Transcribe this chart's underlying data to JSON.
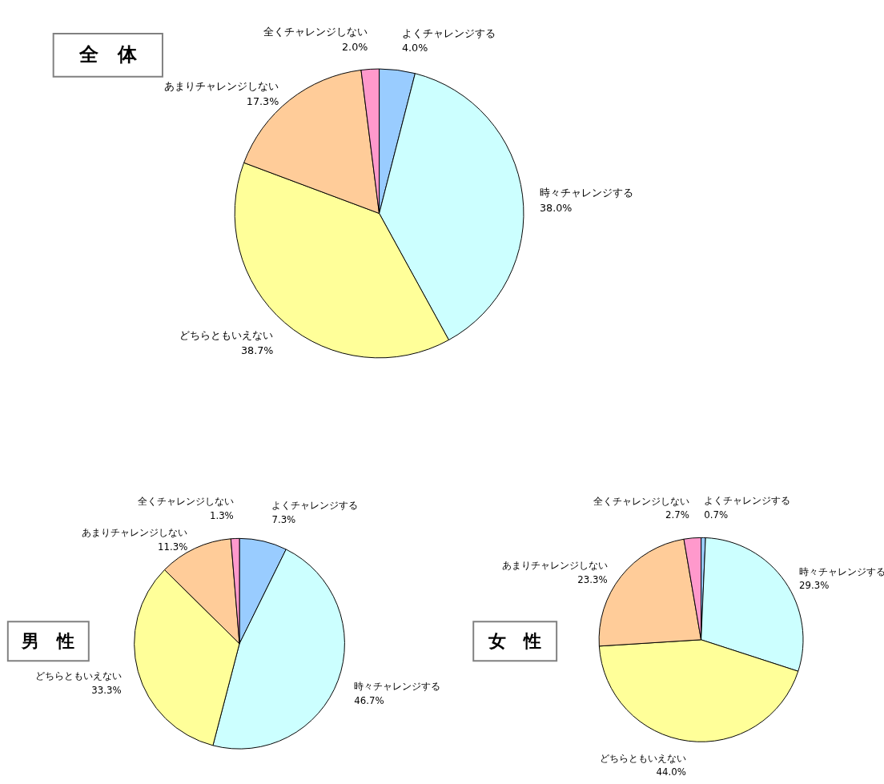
{
  "chart_data": [
    {
      "type": "pie",
      "title": "全　体",
      "categories": [
        "よくチャレンジする",
        "時々チャレンジする",
        "どちらともいえない",
        "あまりチャレンジしない",
        "全くチャレンジしない"
      ],
      "values": [
        4.0,
        38.0,
        38.7,
        17.3,
        2.0
      ],
      "value_labels": [
        "4.0%",
        "38.0%",
        "38.7%",
        "17.3%",
        "2.0%"
      ],
      "colors": [
        "#99ccff",
        "#ccffff",
        "#ffff99",
        "#ffcc99",
        "#ff99cc"
      ]
    },
    {
      "type": "pie",
      "title": "男　性",
      "categories": [
        "よくチャレンジする",
        "時々チャレンジする",
        "どちらともいえない",
        "あまりチャレンジしない",
        "全くチャレンジしない"
      ],
      "values": [
        7.3,
        46.7,
        33.3,
        11.3,
        1.3
      ],
      "value_labels": [
        "7.3%",
        "46.7%",
        "33.3%",
        "11.3%",
        "1.3%"
      ],
      "colors": [
        "#99ccff",
        "#ccffff",
        "#ffff99",
        "#ffcc99",
        "#ff99cc"
      ]
    },
    {
      "type": "pie",
      "title": "女　性",
      "categories": [
        "よくチャレンジする",
        "時々チャレンジする",
        "どちらともいえない",
        "あまりチャレンジしない",
        "全くチャレンジしない"
      ],
      "values": [
        0.7,
        29.3,
        44.0,
        23.3,
        2.7
      ],
      "value_labels": [
        "0.7%",
        "29.3%",
        "44.0%",
        "23.3%",
        "2.7%"
      ],
      "colors": [
        "#99ccff",
        "#ccffff",
        "#ffff99",
        "#ffcc99",
        "#ff99cc"
      ]
    }
  ]
}
